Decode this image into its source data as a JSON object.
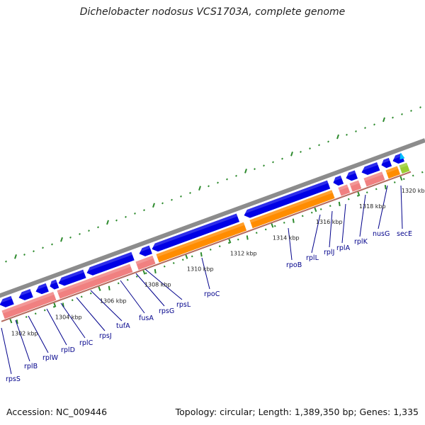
{
  "title": "Dichelobacter nodosus VCS1703A, complete genome",
  "footer": {
    "accession": "Accession: NC_009446",
    "summary": "Topology: circular; Length: 1,389,350 bp; Genes: 1,335"
  },
  "tick_labels": [
    "1302 kbp",
    "1304 kbp",
    "1306 kbp",
    "1308 kbp",
    "1310 kbp",
    "1312 kbp",
    "1314 kbp",
    "1316 kbp",
    "1318 kbp",
    "1320 kbp"
  ],
  "genes": [
    {
      "name": "rpsS"
    },
    {
      "name": "rplB"
    },
    {
      "name": "rplW"
    },
    {
      "name": "rplD"
    },
    {
      "name": "rplC"
    },
    {
      "name": "rpsJ"
    },
    {
      "name": "tufA"
    },
    {
      "name": "fusA"
    },
    {
      "name": "rpsG"
    },
    {
      "name": "rpsL"
    },
    {
      "name": "rpoC"
    },
    {
      "name": "rpoB"
    },
    {
      "name": "rplL"
    },
    {
      "name": "rplJ"
    },
    {
      "name": "rplA"
    },
    {
      "name": "rplK"
    },
    {
      "name": "nusG"
    },
    {
      "name": "secE"
    }
  ],
  "colors": {
    "backbone": "#8c8c8c",
    "cds": "#0000e6",
    "rna_orange": "#ff8c00",
    "rna_pink": "#f08080",
    "tick": "#2e8b2e",
    "label": "#00008b",
    "highlight_green": "#9acd32",
    "highlight_cyan": "#00bfff"
  }
}
